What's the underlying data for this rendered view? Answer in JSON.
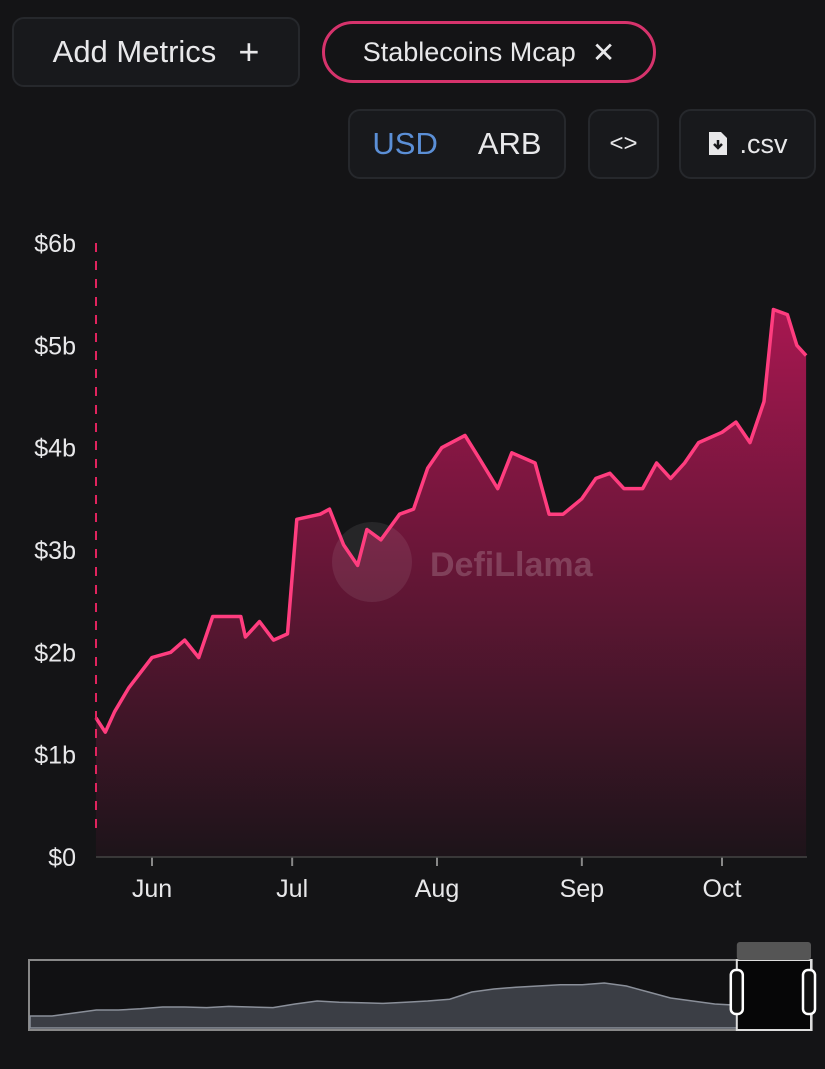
{
  "header": {
    "add_metrics_label": "Add Metrics",
    "add_icon": "plus-icon",
    "metric_chip_label": "Stablecoins Mcap",
    "remove_icon": "close-icon"
  },
  "toolbar": {
    "currency_options": [
      "USD",
      "ARB"
    ],
    "selected_currency": "USD",
    "embed_icon": "code-brackets-icon",
    "csv_label": ".csv",
    "csv_icon": "file-download-icon"
  },
  "watermark": "DefiLlama",
  "colors": {
    "line": "#ff3d7f",
    "fill": "#c2185b",
    "selected": "#5b8fd6",
    "background": "#141416"
  },
  "chart_data": {
    "type": "area",
    "title": "",
    "xlabel": "",
    "ylabel": "",
    "ylim": [
      0,
      6
    ],
    "y_ticks": [
      "$0",
      "$1b",
      "$2b",
      "$3b",
      "$4b",
      "$5b",
      "$6b"
    ],
    "x_ticks": [
      "Jun",
      "Jul",
      "Aug",
      "Sep",
      "Oct"
    ],
    "grid": false,
    "series": [
      {
        "unit": "USD billions",
        "points": [
          [
            "May 20",
            1.36
          ],
          [
            "May 22",
            1.22
          ],
          [
            "May 24",
            1.42
          ],
          [
            "May 27",
            1.65
          ],
          [
            "Jun 1",
            1.95
          ],
          [
            "Jun 5",
            2.0
          ],
          [
            "Jun 8",
            2.12
          ],
          [
            "Jun 11",
            1.95
          ],
          [
            "Jun 14",
            2.35
          ],
          [
            "Jun 17",
            2.35
          ],
          [
            "Jun 20",
            2.35
          ],
          [
            "Jun 21",
            2.15
          ],
          [
            "Jun 24",
            2.3
          ],
          [
            "Jun 27",
            2.12
          ],
          [
            "Jun 30",
            2.18
          ],
          [
            "Jul 2",
            3.3
          ],
          [
            "Jul 7",
            3.35
          ],
          [
            "Jul 9",
            3.4
          ],
          [
            "Jul 12",
            3.05
          ],
          [
            "Jul 15",
            2.85
          ],
          [
            "Jul 17",
            3.2
          ],
          [
            "Jul 20",
            3.1
          ],
          [
            "Jul 24",
            3.35
          ],
          [
            "Jul 27",
            3.4
          ],
          [
            "Jul 30",
            3.8
          ],
          [
            "Aug 2",
            4.0
          ],
          [
            "Aug 7",
            4.12
          ],
          [
            "Aug 10",
            3.9
          ],
          [
            "Aug 14",
            3.6
          ],
          [
            "Aug 17",
            3.95
          ],
          [
            "Aug 22",
            3.85
          ],
          [
            "Aug 25",
            3.35
          ],
          [
            "Aug 28",
            3.35
          ],
          [
            "Sep 1",
            3.5
          ],
          [
            "Sep 4",
            3.7
          ],
          [
            "Sep 7",
            3.75
          ],
          [
            "Sep 10",
            3.6
          ],
          [
            "Sep 14",
            3.6
          ],
          [
            "Sep 17",
            3.85
          ],
          [
            "Sep 20",
            3.7
          ],
          [
            "Sep 23",
            3.85
          ],
          [
            "Sep 26",
            4.05
          ],
          [
            "Oct 1",
            4.15
          ],
          [
            "Oct 4",
            4.25
          ],
          [
            "Oct 7",
            4.05
          ],
          [
            "Oct 10",
            4.45
          ],
          [
            "Oct 12",
            5.35
          ],
          [
            "Oct 15",
            5.3
          ],
          [
            "Oct 17",
            5.0
          ],
          [
            "Oct 19",
            4.9
          ]
        ]
      }
    ],
    "brush": {
      "overview_values": [
        0.2,
        0.2,
        0.25,
        0.3,
        0.3,
        0.32,
        0.35,
        0.35,
        0.34,
        0.36,
        0.35,
        0.34,
        0.4,
        0.45,
        0.43,
        0.42,
        0.41,
        0.43,
        0.45,
        0.48,
        0.6,
        0.65,
        0.68,
        0.7,
        0.72,
        0.72,
        0.75,
        0.7,
        0.6,
        0.5,
        0.45,
        0.4,
        0.38
      ],
      "selected_range_fraction": [
        0.905,
        1.0
      ]
    }
  }
}
